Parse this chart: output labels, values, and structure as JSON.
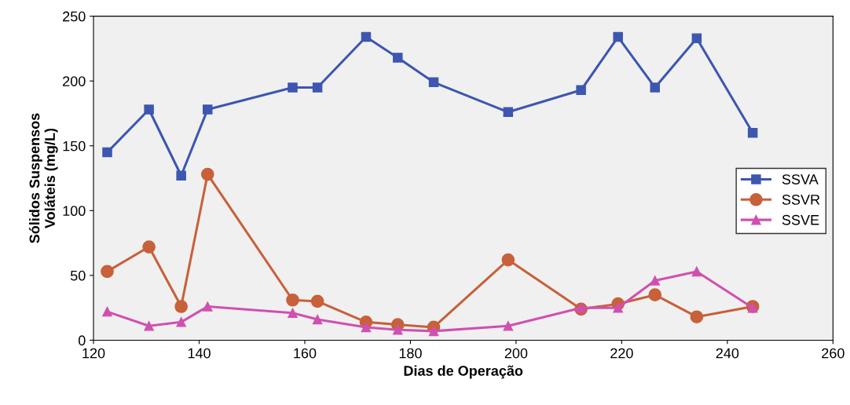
{
  "chart_data": {
    "type": "line",
    "xlabel": "Dias de Operação",
    "ylabel": "Sólidos Suspensos\nVoláteis (mg/L)",
    "x": [
      122.6,
      130.5,
      136.6,
      141.6,
      157.7,
      162.4,
      171.6,
      177.6,
      184.4,
      198.5,
      212.3,
      219.3,
      226.3,
      234.2,
      244.8
    ],
    "series": [
      {
        "name": "SSVA",
        "color": "#3d56b0",
        "marker": "square",
        "values": [
          145,
          178,
          127,
          178,
          195,
          195,
          234,
          218,
          199,
          176,
          193,
          234,
          195,
          233,
          160
        ]
      },
      {
        "name": "SSVR",
        "color": "#c8603a",
        "marker": "circle",
        "values": [
          53,
          72,
          26,
          128,
          31,
          30,
          14,
          12,
          10,
          62,
          24,
          28,
          35,
          18,
          26
        ]
      },
      {
        "name": "SSVE",
        "color": "#d050b0",
        "marker": "triangle",
        "values": [
          22,
          11,
          14,
          26,
          21,
          16,
          10,
          8,
          7,
          11,
          25,
          25,
          46,
          53,
          25
        ]
      }
    ],
    "xlim": [
      120,
      260
    ],
    "xticks": [
      120,
      140,
      160,
      180,
      200,
      220,
      240,
      260
    ],
    "ylim": [
      0,
      250
    ],
    "yticks": [
      0,
      50,
      100,
      150,
      200,
      250
    ],
    "grid": false,
    "legend": "right",
    "line_style": "solid"
  }
}
